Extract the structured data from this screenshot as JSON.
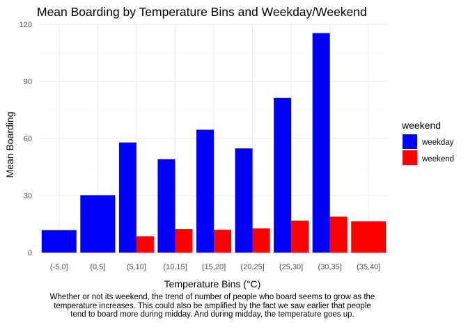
{
  "chart_data": {
    "type": "bar",
    "title": "Mean Boarding by Temperature Bins and Weekday/Weekend",
    "xlabel": "Temperature Bins (°C)",
    "ylabel": "Mean Boarding",
    "categories": [
      "(-5,0]",
      "(0,5]",
      "(5,10]",
      "(10,15]",
      "(15,20]",
      "(20,25]",
      "(25,30]",
      "(30,35]",
      "(35,40]"
    ],
    "series": [
      {
        "name": "weekday",
        "color": "#0000FF",
        "values": [
          11.8,
          30.2,
          57.9,
          49.1,
          64.6,
          54.8,
          81.3,
          115.4,
          null
        ]
      },
      {
        "name": "weekend",
        "color": "#FF0000",
        "values": [
          null,
          null,
          8.6,
          12.4,
          12.0,
          12.7,
          16.8,
          18.9,
          16.4
        ]
      }
    ],
    "ylim": [
      0,
      120
    ],
    "yticks": [
      0,
      30,
      60,
      90,
      120
    ],
    "grid": true,
    "legend": {
      "title": "weekend",
      "position": "right",
      "entries": [
        "weekday",
        "weekend"
      ]
    },
    "caption": "Whether or not its weekend, the trend of number of people who board seems to grow as the temperature increases. This could also be amplified by the fact we saw earlier that people tend to board more during midday. And during midday, the temperature goes up."
  }
}
